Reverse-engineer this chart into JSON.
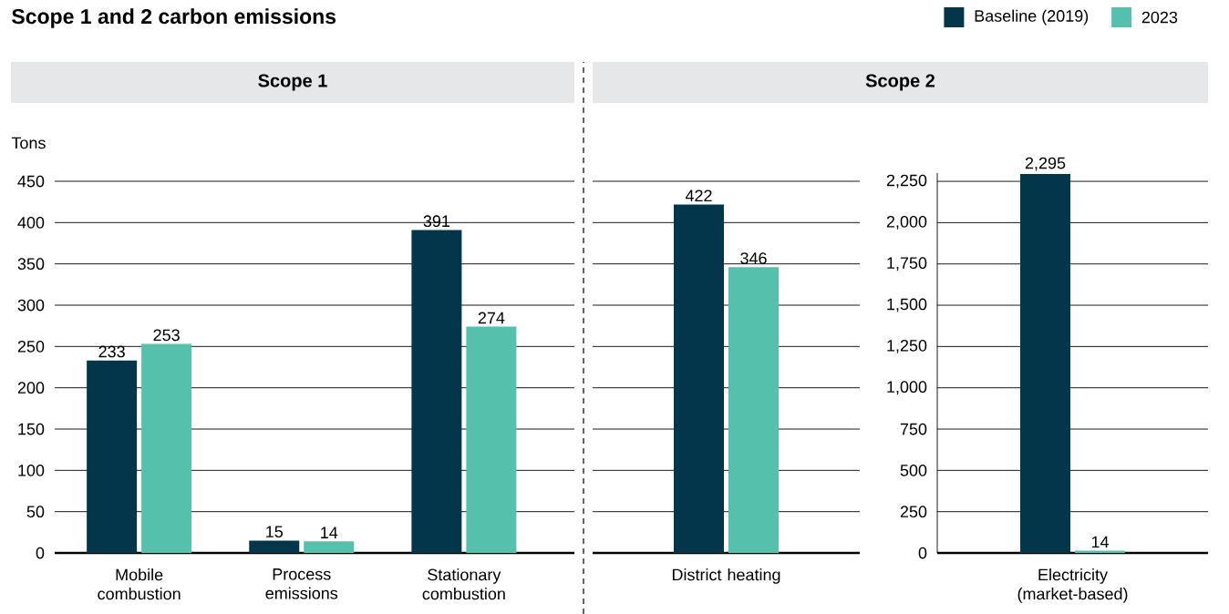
{
  "chart_data": [
    {
      "type": "bar",
      "title": "Scope 1 and 2 carbon emissions",
      "subtitle": "Scope 1",
      "ylabel": "Tons",
      "categories": [
        "Mobile combustion",
        "Process emissions",
        "Stationary combustion"
      ],
      "series": [
        {
          "color": "#03364a",
          "values": [
            233,
            15,
            391
          ],
          "value_labels": [
            "233",
            "15",
            "391"
          ]
        },
        {
          "color": "#55c1ad",
          "values": [
            253,
            14,
            274
          ],
          "value_labels": [
            "253",
            "14",
            "274"
          ]
        }
      ],
      "ylim": [
        0,
        450
      ],
      "yticks": [
        0,
        50,
        100,
        150,
        200,
        250,
        300,
        350,
        400,
        450
      ],
      "grid": "y"
    },
    {
      "type": "bar",
      "subtitle": "Scope 2",
      "categories": [
        "District heating"
      ],
      "series": [
        {
          "color": "#03364a",
          "values": [
            422
          ],
          "value_labels": [
            "422"
          ]
        },
        {
          "color": "#55c1ad",
          "values": [
            346
          ],
          "value_labels": [
            "346"
          ]
        }
      ],
      "ylim": [
        0,
        450
      ],
      "yticks": [
        0,
        50,
        100,
        150,
        200,
        250,
        300,
        350,
        400,
        450
      ],
      "grid": "y",
      "tick_labels": "x"
    },
    {
      "type": "bar",
      "categories": [
        "Electricity (market-based)"
      ],
      "series": [
        {
          "name": "Baseline (2019)",
          "color": "#03364a",
          "values": [
            2295
          ],
          "value_labels": [
            "2,295"
          ]
        },
        {
          "name": "2023",
          "color": "#55c1ad",
          "values": [
            14
          ],
          "value_labels": [
            "14"
          ]
        }
      ],
      "ylim": [
        0,
        2300
      ],
      "yticks": [
        0,
        {
          "value": 250,
          "label": "250"
        },
        {
          "value": 500,
          "label": "500"
        },
        {
          "value": 750,
          "label": "750"
        },
        {
          "value": 1000,
          "label": "1,000"
        },
        {
          "value": 1250,
          "label": "1,250"
        },
        {
          "value": 1500,
          "label": "1,500"
        },
        {
          "value": 1750,
          "label": "1,750"
        },
        {
          "value": 2000,
          "label": "2,000"
        },
        {
          "value": 2250,
          "label": "2,250"
        }
      ],
      "grid": "y",
      "legend": "top"
    }
  ]
}
